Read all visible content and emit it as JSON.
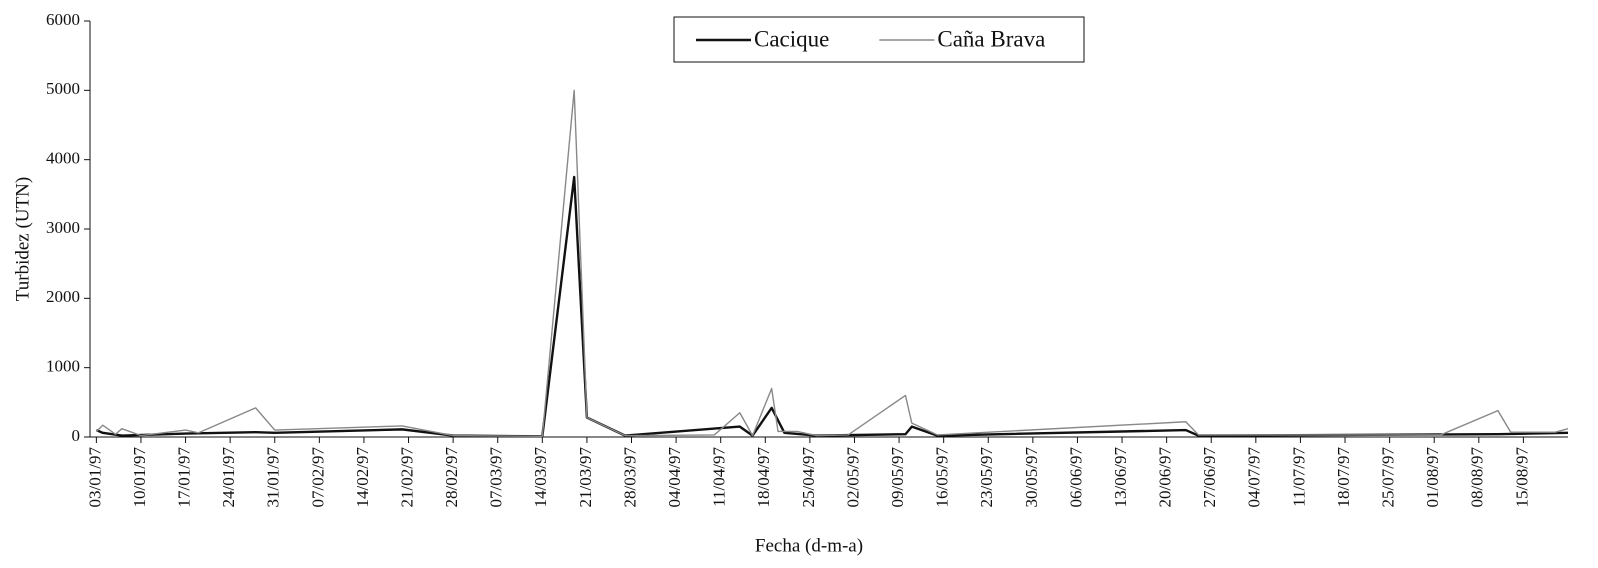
{
  "chart_data": {
    "type": "line",
    "xlabel": "Fecha (d-m-a)",
    "ylabel": "Turbidez (UTN)",
    "xlim": [
      "02/01/97",
      "22/08/97"
    ],
    "xticks": [
      "03/01/97",
      "10/01/97",
      "17/01/97",
      "24/01/97",
      "31/01/97",
      "07/02/97",
      "14/02/97",
      "21/02/97",
      "28/02/97",
      "07/03/97",
      "14/03/97",
      "21/03/97",
      "28/03/97",
      "04/04/97",
      "11/04/97",
      "18/04/97",
      "25/04/97",
      "02/05/97",
      "09/05/97",
      "16/05/97",
      "23/05/97",
      "30/05/97",
      "06/06/97",
      "13/06/97",
      "20/06/97",
      "27/06/97",
      "04/07/97",
      "11/07/97",
      "18/07/97",
      "25/07/97",
      "01/08/97",
      "08/08/97",
      "15/08/97"
    ],
    "ylim": [
      0,
      6000
    ],
    "yticks": [
      0,
      1000,
      2000,
      3000,
      4000,
      5000,
      6000
    ],
    "legend": "upper center",
    "series": [
      {
        "name": "Cacique",
        "color": "#111111",
        "width": 2.4,
        "x": [
          "03/01/97",
          "04/01/97",
          "07/01/97",
          "17/01/97",
          "28/01/97",
          "31/01/97",
          "20/02/97",
          "28/02/97",
          "14/03/97",
          "19/03/97",
          "21/03/97",
          "27/03/97",
          "14/04/97",
          "16/04/97",
          "19/04/97",
          "21/04/97",
          "26/04/97",
          "10/05/97",
          "11/05/97",
          "15/05/97",
          "23/06/97",
          "25/06/97",
          "11/08/97",
          "22/08/97"
        ],
        "values": [
          100,
          60,
          20,
          50,
          70,
          60,
          110,
          20,
          10,
          3750,
          280,
          20,
          150,
          20,
          420,
          60,
          20,
          40,
          150,
          20,
          100,
          20,
          40,
          60
        ]
      },
      {
        "name": "Caña Brava",
        "color": "#888888",
        "width": 1.4,
        "x": [
          "03/01/97",
          "04/01/97",
          "06/01/97",
          "07/01/97",
          "10/01/97",
          "17/01/97",
          "19/01/97",
          "28/01/97",
          "31/01/97",
          "20/02/97",
          "28/02/97",
          "14/03/97",
          "19/03/97",
          "21/03/97",
          "27/03/97",
          "10/04/97",
          "14/04/97",
          "16/04/97",
          "19/04/97",
          "20/04/97",
          "23/04/97",
          "26/04/97",
          "01/05/97",
          "10/05/97",
          "11/05/97",
          "15/05/97",
          "23/06/97",
          "25/06/97",
          "02/08/97",
          "11/08/97",
          "13/08/97",
          "20/08/97",
          "22/08/97"
        ],
        "values": [
          80,
          170,
          40,
          120,
          20,
          100,
          60,
          420,
          100,
          160,
          20,
          10,
          5000,
          280,
          20,
          30,
          350,
          20,
          700,
          80,
          80,
          20,
          30,
          600,
          200,
          30,
          220,
          30,
          30,
          380,
          70,
          70,
          120
        ]
      }
    ]
  }
}
